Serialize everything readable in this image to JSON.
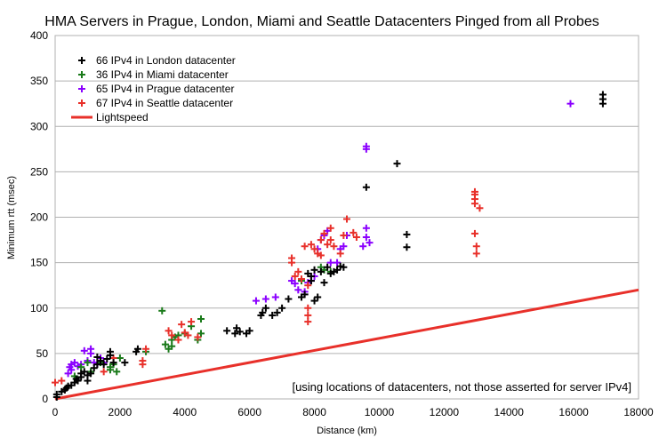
{
  "chart_data": {
    "type": "scatter",
    "title": "HMA Servers in Prague, London, Miami and Seattle Datacenters Pinged from all Probes",
    "xlabel": "Distance (km)",
    "ylabel": "Minimum rtt (msec)",
    "xlim": [
      0,
      18000
    ],
    "ylim": [
      0,
      400
    ],
    "xticks": [
      0,
      2000,
      4000,
      6000,
      8000,
      10000,
      12000,
      14000,
      16000,
      18000
    ],
    "yticks": [
      0,
      50,
      100,
      150,
      200,
      250,
      300,
      350,
      400
    ],
    "grid": "horizontal",
    "legend_position": "top-left",
    "annotation": "[using locations of datacenters, not those asserted for server IPv4]",
    "series": [
      {
        "name": "66 IPv4 in London datacenter",
        "color": "#000000",
        "marker": "plus",
        "points": [
          [
            50,
            2
          ],
          [
            50,
            5
          ],
          [
            200,
            8
          ],
          [
            300,
            10
          ],
          [
            350,
            12
          ],
          [
            400,
            14
          ],
          [
            500,
            15
          ],
          [
            600,
            18
          ],
          [
            650,
            22
          ],
          [
            700,
            20
          ],
          [
            800,
            24
          ],
          [
            800,
            28
          ],
          [
            900,
            30
          ],
          [
            1000,
            20
          ],
          [
            1000,
            26
          ],
          [
            1100,
            28
          ],
          [
            1200,
            34
          ],
          [
            1300,
            38
          ],
          [
            1300,
            46
          ],
          [
            1400,
            42
          ],
          [
            1500,
            38
          ],
          [
            1600,
            44
          ],
          [
            1700,
            48
          ],
          [
            1700,
            52
          ],
          [
            1800,
            40
          ],
          [
            2150,
            40
          ],
          [
            2500,
            52
          ],
          [
            2550,
            55
          ],
          [
            5300,
            75
          ],
          [
            5550,
            72
          ],
          [
            5600,
            78
          ],
          [
            5700,
            74
          ],
          [
            5900,
            72
          ],
          [
            6000,
            75
          ],
          [
            6350,
            92
          ],
          [
            6400,
            95
          ],
          [
            6500,
            100
          ],
          [
            6700,
            92
          ],
          [
            6850,
            95
          ],
          [
            7000,
            100
          ],
          [
            7200,
            110
          ],
          [
            7600,
            112
          ],
          [
            7700,
            115
          ],
          [
            7800,
            138
          ],
          [
            7900,
            135
          ],
          [
            7900,
            130
          ],
          [
            8000,
            142
          ],
          [
            8000,
            108
          ],
          [
            8100,
            112
          ],
          [
            8200,
            140
          ],
          [
            8300,
            128
          ],
          [
            8400,
            145
          ],
          [
            8500,
            138
          ],
          [
            8600,
            140
          ],
          [
            8700,
            142
          ],
          [
            8800,
            146
          ],
          [
            8900,
            145
          ],
          [
            9600,
            233
          ],
          [
            10550,
            259
          ],
          [
            10850,
            181
          ],
          [
            10850,
            167
          ],
          [
            16900,
            335
          ],
          [
            16900,
            330
          ],
          [
            16900,
            325
          ]
        ]
      },
      {
        "name": "36 IPv4 in Miami datacenter",
        "color": "#1a7a1a",
        "marker": "plus",
        "points": [
          [
            600,
            25
          ],
          [
            800,
            35
          ],
          [
            1000,
            40
          ],
          [
            1100,
            30
          ],
          [
            1400,
            40
          ],
          [
            1700,
            35
          ],
          [
            1700,
            32
          ],
          [
            1800,
            38
          ],
          [
            1900,
            30
          ],
          [
            2000,
            45
          ],
          [
            2800,
            52
          ],
          [
            3300,
            97
          ],
          [
            3400,
            60
          ],
          [
            3500,
            55
          ],
          [
            3600,
            58
          ],
          [
            3600,
            65
          ],
          [
            3700,
            68
          ],
          [
            3800,
            70
          ],
          [
            4000,
            72
          ],
          [
            4200,
            80
          ],
          [
            4400,
            65
          ],
          [
            4500,
            72
          ],
          [
            4500,
            88
          ],
          [
            7600,
            130
          ],
          [
            8200,
            145
          ],
          [
            8300,
            142
          ],
          [
            8500,
            140
          ]
        ]
      },
      {
        "name": "65 IPv4 in Prague datacenter",
        "color": "#8b00ff",
        "marker": "plus",
        "points": [
          [
            400,
            28
          ],
          [
            450,
            35
          ],
          [
            500,
            38
          ],
          [
            500,
            32
          ],
          [
            600,
            40
          ],
          [
            700,
            36
          ],
          [
            800,
            38
          ],
          [
            900,
            53
          ],
          [
            1000,
            42
          ],
          [
            1100,
            55
          ],
          [
            1100,
            50
          ],
          [
            1200,
            40
          ],
          [
            1300,
            38
          ],
          [
            1400,
            45
          ],
          [
            1500,
            40
          ],
          [
            6200,
            108
          ],
          [
            6500,
            110
          ],
          [
            6800,
            112
          ],
          [
            7300,
            130
          ],
          [
            7400,
            127
          ],
          [
            7500,
            120
          ],
          [
            7700,
            118
          ],
          [
            7800,
            128
          ],
          [
            7900,
            130
          ],
          [
            8000,
            135
          ],
          [
            8100,
            165
          ],
          [
            8200,
            175
          ],
          [
            8300,
            180
          ],
          [
            8400,
            185
          ],
          [
            8500,
            150
          ],
          [
            8700,
            150
          ],
          [
            8800,
            165
          ],
          [
            8900,
            168
          ],
          [
            9000,
            180
          ],
          [
            9500,
            168
          ],
          [
            9600,
            278
          ],
          [
            9600,
            275
          ],
          [
            9600,
            188
          ],
          [
            9600,
            178
          ],
          [
            9700,
            172
          ],
          [
            15900,
            325
          ]
        ]
      },
      {
        "name": "67 IPv4 in Seattle datacenter",
        "color": "#e8302a",
        "marker": "plus",
        "points": [
          [
            0,
            18
          ],
          [
            200,
            20
          ],
          [
            300,
            10
          ],
          [
            1500,
            30
          ],
          [
            1800,
            45
          ],
          [
            2700,
            42
          ],
          [
            2700,
            38
          ],
          [
            2800,
            55
          ],
          [
            3500,
            75
          ],
          [
            3600,
            70
          ],
          [
            3800,
            65
          ],
          [
            3900,
            82
          ],
          [
            4000,
            73
          ],
          [
            4100,
            70
          ],
          [
            4200,
            85
          ],
          [
            4400,
            68
          ],
          [
            7300,
            150
          ],
          [
            7300,
            155
          ],
          [
            7400,
            135
          ],
          [
            7500,
            140
          ],
          [
            7600,
            132
          ],
          [
            7700,
            168
          ],
          [
            7800,
            125
          ],
          [
            7800,
            100
          ],
          [
            7800,
            92
          ],
          [
            7800,
            85
          ],
          [
            7900,
            170
          ],
          [
            8000,
            165
          ],
          [
            8100,
            160
          ],
          [
            8200,
            158
          ],
          [
            8200,
            175
          ],
          [
            8300,
            182
          ],
          [
            8400,
            170
          ],
          [
            8500,
            175
          ],
          [
            8500,
            188
          ],
          [
            8600,
            168
          ],
          [
            8800,
            160
          ],
          [
            8900,
            180
          ],
          [
            9000,
            198
          ],
          [
            9200,
            183
          ],
          [
            9300,
            178
          ],
          [
            12950,
            228
          ],
          [
            12950,
            225
          ],
          [
            12950,
            220
          ],
          [
            12950,
            215
          ],
          [
            12950,
            182
          ],
          [
            13000,
            168
          ],
          [
            13000,
            160
          ],
          [
            13100,
            210
          ]
        ]
      }
    ],
    "line_series": {
      "name": "Lightspeed",
      "color": "#e8302a",
      "points": [
        [
          0,
          0
        ],
        [
          18000,
          120
        ]
      ]
    }
  }
}
